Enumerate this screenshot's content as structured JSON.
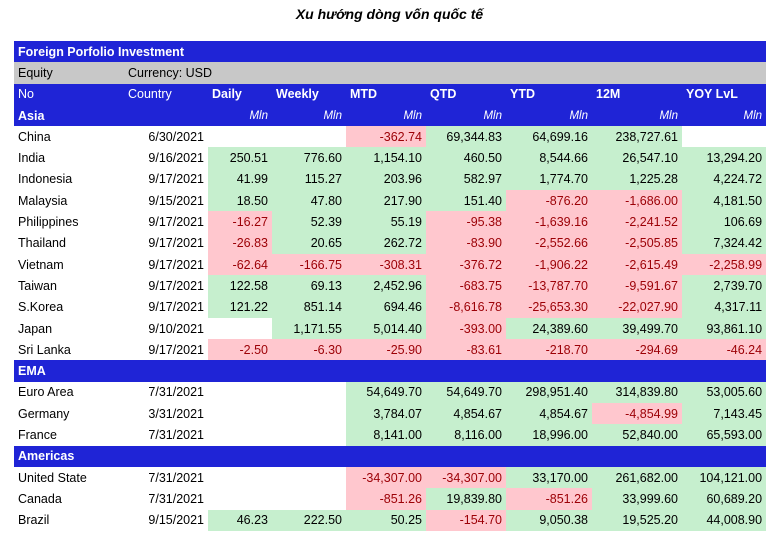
{
  "title": "Xu hướng dòng vốn quốc tế",
  "header": {
    "banner": "Foreign Porfolio Investment",
    "equity": "Equity",
    "currency": "Currency: USD"
  },
  "columns": [
    "No",
    "Country",
    "Daily",
    "Weekly",
    "MTD",
    "QTD",
    "YTD",
    "12M",
    "YOY LvL"
  ],
  "unit": "Mln",
  "sections": [
    {
      "name": "Asia",
      "rows": [
        {
          "country": "China",
          "date": "6/30/2021",
          "daily": "",
          "weekly": "",
          "mtd": "-362.74",
          "qtd": "69,344.83",
          "ytd": "64,699.16",
          "m12": "238,727.61",
          "yoy": ""
        },
        {
          "country": "India",
          "date": "9/16/2021",
          "daily": "250.51",
          "weekly": "776.60",
          "mtd": "1,154.10",
          "qtd": "460.50",
          "ytd": "8,544.66",
          "m12": "26,547.10",
          "yoy": "13,294.20"
        },
        {
          "country": "Indonesia",
          "date": "9/17/2021",
          "daily": "41.99",
          "weekly": "115.27",
          "mtd": "203.96",
          "qtd": "582.97",
          "ytd": "1,774.70",
          "m12": "1,225.28",
          "yoy": "4,224.72"
        },
        {
          "country": "Malaysia",
          "date": "9/15/2021",
          "daily": "18.50",
          "weekly": "47.80",
          "mtd": "217.90",
          "qtd": "151.40",
          "ytd": "-876.20",
          "m12": "-1,686.00",
          "yoy": "4,181.50"
        },
        {
          "country": "Philippines",
          "date": "9/17/2021",
          "daily": "-16.27",
          "weekly": "52.39",
          "mtd": "55.19",
          "qtd": "-95.38",
          "ytd": "-1,639.16",
          "m12": "-2,241.52",
          "yoy": "106.69"
        },
        {
          "country": "Thailand",
          "date": "9/17/2021",
          "daily": "-26.83",
          "weekly": "20.65",
          "mtd": "262.72",
          "qtd": "-83.90",
          "ytd": "-2,552.66",
          "m12": "-2,505.85",
          "yoy": "7,324.42"
        },
        {
          "country": "Vietnam",
          "date": "9/17/2021",
          "daily": "-62.64",
          "weekly": "-166.75",
          "mtd": "-308.31",
          "qtd": "-376.72",
          "ytd": "-1,906.22",
          "m12": "-2,615.49",
          "yoy": "-2,258.99"
        },
        {
          "country": "Taiwan",
          "date": "9/17/2021",
          "daily": "122.58",
          "weekly": "69.13",
          "mtd": "2,452.96",
          "qtd": "-683.75",
          "ytd": "-13,787.70",
          "m12": "-9,591.67",
          "yoy": "2,739.70"
        },
        {
          "country": "S.Korea",
          "date": "9/17/2021",
          "daily": "121.22",
          "weekly": "851.14",
          "mtd": "694.46",
          "qtd": "-8,616.78",
          "ytd": "-25,653.30",
          "m12": "-22,027.90",
          "yoy": "4,317.11"
        },
        {
          "country": "Japan",
          "date": "9/10/2021",
          "daily": "",
          "weekly": "1,171.55",
          "mtd": "5,014.40",
          "qtd": "-393.00",
          "ytd": "24,389.60",
          "m12": "39,499.70",
          "yoy": "93,861.10"
        },
        {
          "country": "Sri Lanka",
          "date": "9/17/2021",
          "daily": "-2.50",
          "weekly": "-6.30",
          "mtd": "-25.90",
          "qtd": "-83.61",
          "ytd": "-218.70",
          "m12": "-294.69",
          "yoy": "-46.24"
        }
      ]
    },
    {
      "name": "EMA",
      "rows": [
        {
          "country": "Euro Area",
          "date": "7/31/2021",
          "daily": "",
          "weekly": "",
          "mtd": "54,649.70",
          "qtd": "54,649.70",
          "ytd": "298,951.40",
          "m12": "314,839.80",
          "yoy": "53,005.60"
        },
        {
          "country": "Germany",
          "date": "3/31/2021",
          "daily": "",
          "weekly": "",
          "mtd": "3,784.07",
          "qtd": "4,854.67",
          "ytd": "4,854.67",
          "m12": "-4,854.99",
          "yoy": "7,143.45"
        },
        {
          "country": "France",
          "date": "7/31/2021",
          "daily": "",
          "weekly": "",
          "mtd": "8,141.00",
          "qtd": "8,116.00",
          "ytd": "18,996.00",
          "m12": "52,840.00",
          "yoy": "65,593.00"
        }
      ]
    },
    {
      "name": "Americas",
      "rows": [
        {
          "country": "United State",
          "date": "7/31/2021",
          "daily": "",
          "weekly": "",
          "mtd": "-34,307.00",
          "qtd": "-34,307.00",
          "ytd": "33,170.00",
          "m12": "261,682.00",
          "yoy": "104,121.00"
        },
        {
          "country": "Canada",
          "date": "7/31/2021",
          "daily": "",
          "weekly": "",
          "mtd": "-851.26",
          "qtd": "19,839.80",
          "ytd": "-851.26",
          "m12": "33,999.60",
          "yoy": "60,689.20"
        },
        {
          "country": "Brazil",
          "date": "9/15/2021",
          "daily": "46.23",
          "weekly": "222.50",
          "mtd": "50.25",
          "qtd": "-154.70",
          "ytd": "9,050.38",
          "m12": "19,525.20",
          "yoy": "44,008.90"
        }
      ]
    }
  ],
  "colors": {
    "header_blue": "#1f24d6",
    "header_grey": "#c8c8c8",
    "positive_fill": "#c6efce",
    "negative_fill": "#ffc7ce",
    "negative_text": "#9c0006"
  }
}
